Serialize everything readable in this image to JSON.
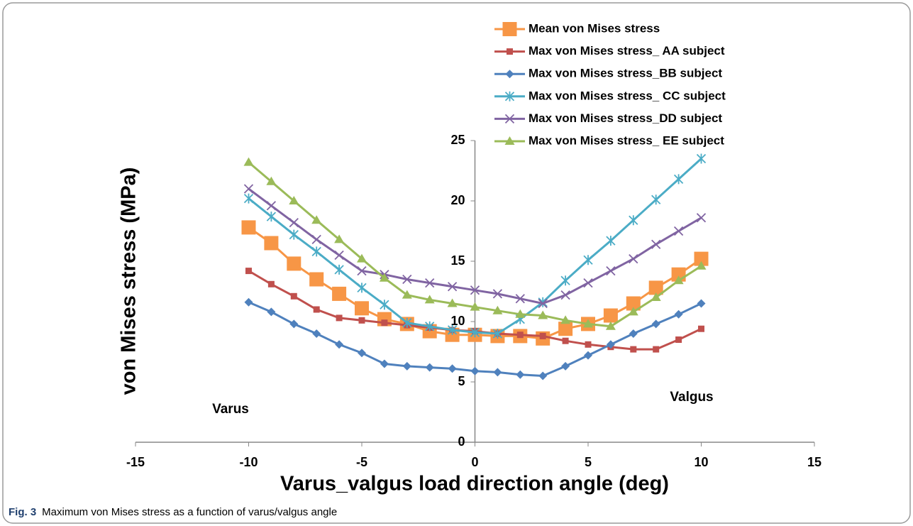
{
  "chart_data": {
    "type": "line",
    "ylabel": "von Mises stress (MPa)",
    "xlabel": "Varus_valgus load direction angle (deg)",
    "annotations": [
      "Varus",
      "Valgus"
    ],
    "x": [
      -10,
      -9,
      -8,
      -7,
      -6,
      -5,
      -4,
      -3,
      -2,
      -1,
      0,
      1,
      2,
      3,
      4,
      5,
      6,
      7,
      8,
      9,
      10
    ],
    "series": [
      {
        "name": "Mean von Mises stress",
        "color": "#f79646",
        "marker": "big-square",
        "values": [
          17.8,
          16.5,
          14.8,
          13.5,
          12.3,
          11.1,
          10.2,
          9.8,
          9.2,
          8.9,
          8.9,
          8.8,
          8.8,
          8.6,
          9.4,
          9.8,
          10.5,
          11.5,
          12.8,
          13.9,
          15.2
        ]
      },
      {
        "name": "Max von Mises stress_ AA subject",
        "color": "#c0504d",
        "marker": "square",
        "values": [
          14.2,
          13.1,
          12.1,
          11.0,
          10.3,
          10.1,
          9.9,
          9.7,
          9.5,
          9.3,
          9.2,
          9.0,
          8.9,
          8.8,
          8.4,
          8.1,
          7.9,
          7.7,
          7.7,
          8.5,
          9.4
        ]
      },
      {
        "name": "Max von Mises stress_BB subject",
        "color": "#4f81bd",
        "marker": "diamond",
        "values": [
          11.6,
          10.8,
          9.8,
          9.0,
          8.1,
          7.4,
          6.5,
          6.3,
          6.2,
          6.1,
          5.9,
          5.8,
          5.6,
          5.5,
          6.3,
          7.2,
          8.1,
          9.0,
          9.8,
          10.6,
          11.5
        ]
      },
      {
        "name": "Max von Mises stress_ CC subject",
        "color": "#4bacc6",
        "marker": "star",
        "values": [
          20.2,
          18.7,
          17.2,
          15.8,
          14.3,
          12.8,
          11.4,
          9.9,
          9.6,
          9.3,
          9.1,
          9.0,
          10.2,
          11.6,
          13.4,
          15.1,
          16.7,
          18.4,
          20.1,
          21.8,
          23.5
        ]
      },
      {
        "name": "Max von Mises stress_DD subject",
        "color": "#8064a2",
        "marker": "x",
        "values": [
          21.0,
          19.6,
          18.2,
          16.8,
          15.5,
          14.2,
          13.9,
          13.5,
          13.2,
          12.9,
          12.6,
          12.3,
          11.9,
          11.5,
          12.2,
          13.2,
          14.2,
          15.2,
          16.4,
          17.5,
          18.6
        ]
      },
      {
        "name": "Max von Mises stress_ EE subject",
        "color": "#9bbb59",
        "marker": "triangle",
        "values": [
          23.2,
          21.6,
          20.0,
          18.4,
          16.8,
          15.2,
          13.6,
          12.2,
          11.8,
          11.5,
          11.2,
          10.9,
          10.6,
          10.5,
          10.1,
          9.8,
          9.6,
          10.8,
          12.0,
          13.4,
          14.6
        ]
      }
    ],
    "xlim": [
      -15,
      15
    ],
    "xticks": [
      -15,
      -10,
      -5,
      0,
      5,
      10,
      15
    ],
    "ylim": [
      0,
      25
    ],
    "yticks": [
      0,
      5,
      10,
      15,
      20,
      25
    ]
  },
  "figure": {
    "label": "Fig. 3",
    "caption": "Maximum von Mises stress as a function of varus/valgus angle"
  }
}
